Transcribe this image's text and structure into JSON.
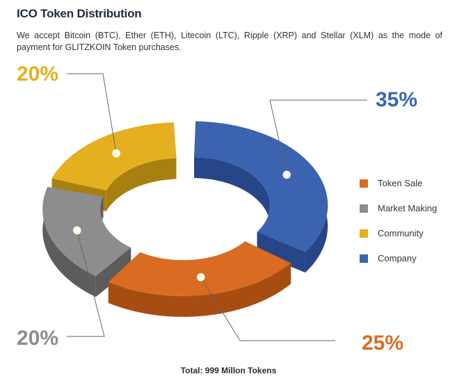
{
  "header": {
    "title": "ICO Token Distribution",
    "intro": "We accept Bitcoin (BTC), Ether (ETH), Litecoin (LTC), Ripple (XRP) and Stellar (XLM) as the mode of payment for GLITZKOIN Token purchases."
  },
  "footer": {
    "total": "Total: 999 Millon Tokens"
  },
  "chart_data": {
    "type": "pie",
    "style": "3d-donut",
    "title": "",
    "legend_position": "right",
    "series": [
      {
        "name": "Token Sale",
        "value": 25,
        "label": "25%",
        "color": "#d96b23",
        "side": "#a84d12"
      },
      {
        "name": "Market Making",
        "value": 20,
        "label": "20%",
        "color": "#8d8d8d",
        "side": "#5c5c5c"
      },
      {
        "name": "Community",
        "value": 20,
        "label": "20%",
        "color": "#e5b020",
        "side": "#a8800f"
      },
      {
        "name": "Company",
        "value": 35,
        "label": "35%",
        "color": "#3c63b0",
        "side": "#274688"
      }
    ]
  }
}
